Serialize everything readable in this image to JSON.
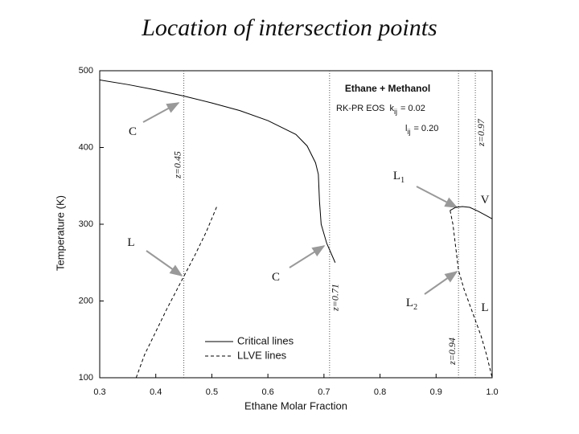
{
  "title": "Location of intersection points",
  "chart_data": {
    "type": "line",
    "x_label": "Ethane Molar Fraction",
    "y_label": "Temperature (K)",
    "xlim": [
      0.3,
      1.0
    ],
    "ylim": [
      100,
      500
    ],
    "xticks": [
      0.3,
      0.4,
      0.5,
      0.6,
      0.7,
      0.8,
      0.9,
      {
        "value": 1.0,
        "label": "1.0"
      }
    ],
    "yticks": [
      100,
      200,
      300,
      400,
      500
    ],
    "inset": {
      "title": "Ethane + Methanol",
      "eos": "RK-PR EOS",
      "k": "k",
      "k_sub": "ij",
      "k_value": "= 0.02",
      "l": "l",
      "l_sub": "ij",
      "l_value": "= 0.20"
    },
    "vlines": [
      {
        "value": 0.45,
        "label": "z=0.45"
      },
      {
        "value": 0.71,
        "label": "z=0.71"
      },
      {
        "value": 0.94,
        "label": "z=0.94"
      },
      {
        "value": 0.97,
        "label": "z=0.97"
      }
    ],
    "annotations": [
      {
        "text": "C"
      },
      {
        "text": "L"
      },
      {
        "text": "C"
      },
      {
        "text": "L",
        "sub": "1"
      },
      {
        "text": "V"
      },
      {
        "text": "L",
        "sub": "2"
      },
      {
        "text": "L"
      }
    ],
    "series": [
      {
        "name": "Critical lines",
        "color": "#000000",
        "dash": "none",
        "x": [
          0.3,
          0.35,
          0.4,
          0.45,
          0.5,
          0.55,
          0.6,
          0.65,
          0.67,
          0.685,
          0.69,
          0.692,
          0.695,
          0.705,
          0.72,
          null,
          0.925,
          0.935,
          0.947,
          0.96,
          0.975,
          0.99,
          1.0
        ],
        "values": [
          488,
          482,
          475,
          467,
          458,
          448,
          435,
          417,
          402,
          380,
          365,
          330,
          300,
          275,
          250,
          null,
          318,
          322,
          323,
          322,
          317,
          311,
          307
        ]
      },
      {
        "name": "LLVE lines",
        "color": "#000000",
        "dash": "4,3",
        "x": [
          0.365,
          0.38,
          0.4,
          0.42,
          0.45,
          0.47,
          0.49,
          0.51,
          null,
          0.925,
          0.93,
          0.935,
          0.94,
          0.95,
          0.96,
          0.97,
          0.98,
          0.99,
          1.0
        ],
        "values": [
          100,
          130,
          160,
          190,
          232,
          260,
          290,
          325,
          null,
          318,
          300,
          270,
          240,
          215,
          195,
          175,
          155,
          130,
          100
        ]
      }
    ]
  }
}
